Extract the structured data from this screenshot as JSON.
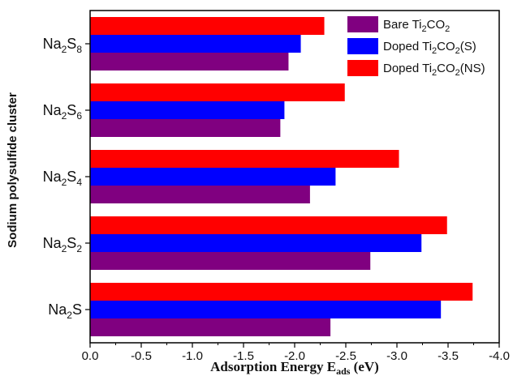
{
  "chart_data": {
    "type": "bar",
    "orientation": "horizontal",
    "categories": [
      "Na2S8",
      "Na2S6",
      "Na2S4",
      "Na2S2",
      "Na2S"
    ],
    "category_labels": [
      {
        "base": "Na",
        "sub1": "2",
        "mid": "S",
        "sub2": "8"
      },
      {
        "base": "Na",
        "sub1": "2",
        "mid": "S",
        "sub2": "6"
      },
      {
        "base": "Na",
        "sub1": "2",
        "mid": "S",
        "sub2": "4"
      },
      {
        "base": "Na",
        "sub1": "2",
        "mid": "S",
        "sub2": "2"
      },
      {
        "base": "Na",
        "sub1": "2",
        "mid": "S",
        "sub2": ""
      }
    ],
    "series": [
      {
        "name": "Doped Ti2CO2(NS)",
        "legend": {
          "pre": "Doped Ti",
          "sub1": "2",
          "mid": "CO",
          "sub2": "2",
          "post": "(NS)"
        },
        "color": "#ff0000",
        "values": [
          -2.29,
          -2.49,
          -3.02,
          -3.49,
          -3.74
        ]
      },
      {
        "name": "Doped Ti2CO2(S)",
        "legend": {
          "pre": "Doped Ti",
          "sub1": "2",
          "mid": "CO",
          "sub2": "2",
          "post": "(S)"
        },
        "color": "#0000ff",
        "values": [
          -2.06,
          -1.9,
          -2.4,
          -3.24,
          -3.43
        ]
      },
      {
        "name": "Bare Ti2CO2",
        "legend": {
          "pre": "Bare Ti",
          "sub1": "2",
          "mid": "CO",
          "sub2": "2",
          "post": ""
        },
        "color": "#800080",
        "values": [
          -1.94,
          -1.86,
          -2.15,
          -2.74,
          -2.35
        ]
      }
    ],
    "legend_order": [
      2,
      1,
      0
    ],
    "xlim": [
      0.0,
      -4.0
    ],
    "xticks": [
      0.0,
      -0.5,
      -1.0,
      -1.5,
      -2.0,
      -2.5,
      -3.0,
      -3.5,
      -4.0
    ],
    "xtick_labels": [
      "0.0",
      "-0.5",
      "-1.0",
      "-1.5",
      "-2.0",
      "-2.5",
      "-3.0",
      "-3.5",
      "-4.0"
    ],
    "xlabel": {
      "pre": "Adsorption Energy E",
      "sub": "ads",
      "post": " (eV)"
    },
    "ylabel": "Sodium polysulfide cluster",
    "legend_position": "top-right",
    "grid": false
  }
}
